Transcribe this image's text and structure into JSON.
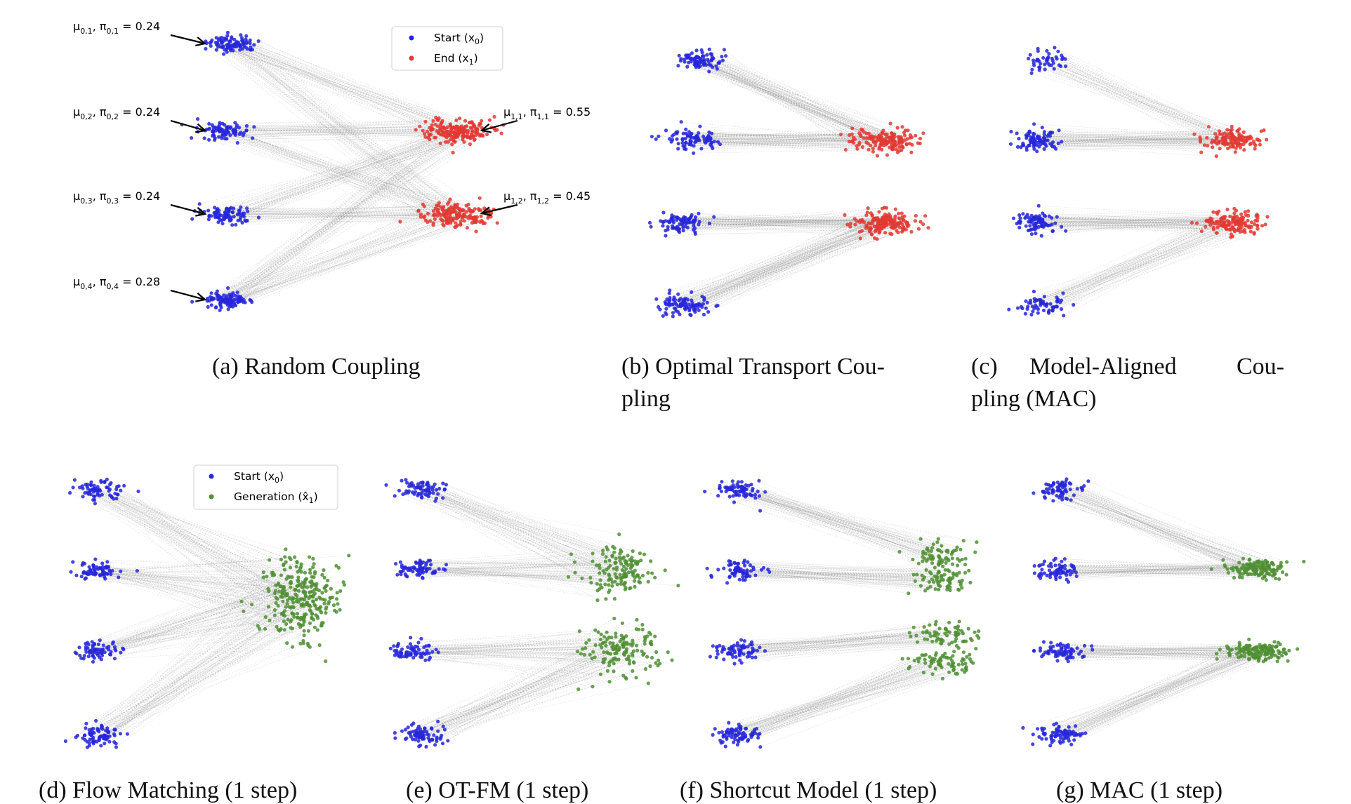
{
  "colors": {
    "start": "#2626d9",
    "end": "#e23a32",
    "generation": "#4f8f32",
    "line": "#8a8a8a"
  },
  "captions": {
    "a": "(a) Random Coupling",
    "b_line1": "(b) Optimal Transport Cou-",
    "b_line2": "pling",
    "c_line1_w1": "(c)",
    "c_line1_w2": "Model-Aligned",
    "c_line1_w3": "Cou-",
    "c_line2": "pling (MAC)",
    "d": "(d) Flow Matching (1 step)",
    "e": "(e) OT-FM (1 step)",
    "f": "(f) Shortcut Model (1 step)",
    "g": "(g) MAC (1 step)"
  },
  "annotations": {
    "start": [
      {
        "mu": "0,1",
        "pi": "0,1",
        "val": "0.24"
      },
      {
        "mu": "0,2",
        "pi": "0,2",
        "val": "0.24"
      },
      {
        "mu": "0,3",
        "pi": "0,3",
        "val": "0.24"
      },
      {
        "mu": "0,4",
        "pi": "0,4",
        "val": "0.28"
      }
    ],
    "end": [
      {
        "mu": "1,1",
        "pi": "1,1",
        "val": "0.55"
      },
      {
        "mu": "1,2",
        "pi": "1,2",
        "val": "0.45"
      }
    ]
  },
  "legend_top": {
    "start_label": "Start (x",
    "start_sub": "0",
    "end_label": "End (x",
    "end_sub": "1"
  },
  "legend_bottom": {
    "start_label": "Start (x",
    "start_sub": "0",
    "gen_label": "Generation (x̂",
    "gen_sub": "1"
  },
  "symbols": {
    "mu": "μ",
    "pi": "π",
    "sep": ",  ",
    "eq": " = ",
    "close": ")"
  }
}
